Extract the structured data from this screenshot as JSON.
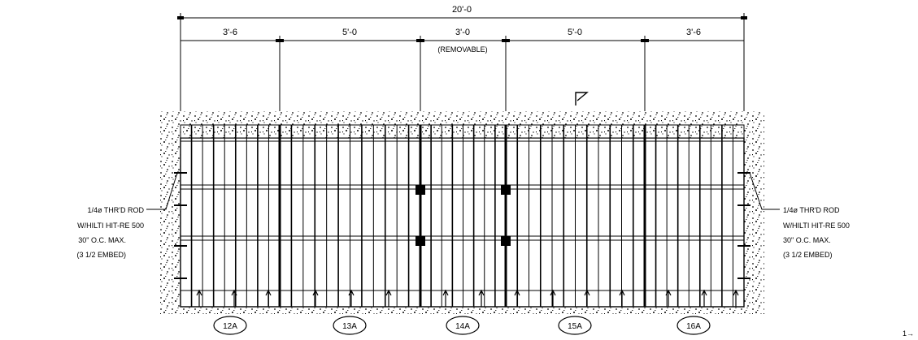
{
  "dimensions": {
    "overall": "20'-0",
    "segments": [
      "3'-6",
      "5'-0",
      "3'-0",
      "5'-0",
      "3'-6"
    ],
    "removable_note": "(REMOVABLE)"
  },
  "callouts": {
    "left": [
      "1/4ø THR'D ROD",
      "W/HILTI HIT-RE 500",
      "30\" O.C. MAX.",
      "(3 1/2 EMBED)"
    ],
    "right": [
      "1/4ø THR'D ROD",
      "W/HILTI HIT-RE 500",
      "30\" O.C. MAX.",
      "(3 1/2 EMBED)"
    ]
  },
  "panel_tags": [
    "12A",
    "13A",
    "14A",
    "15A",
    "16A"
  ],
  "corner_mark": "1→"
}
